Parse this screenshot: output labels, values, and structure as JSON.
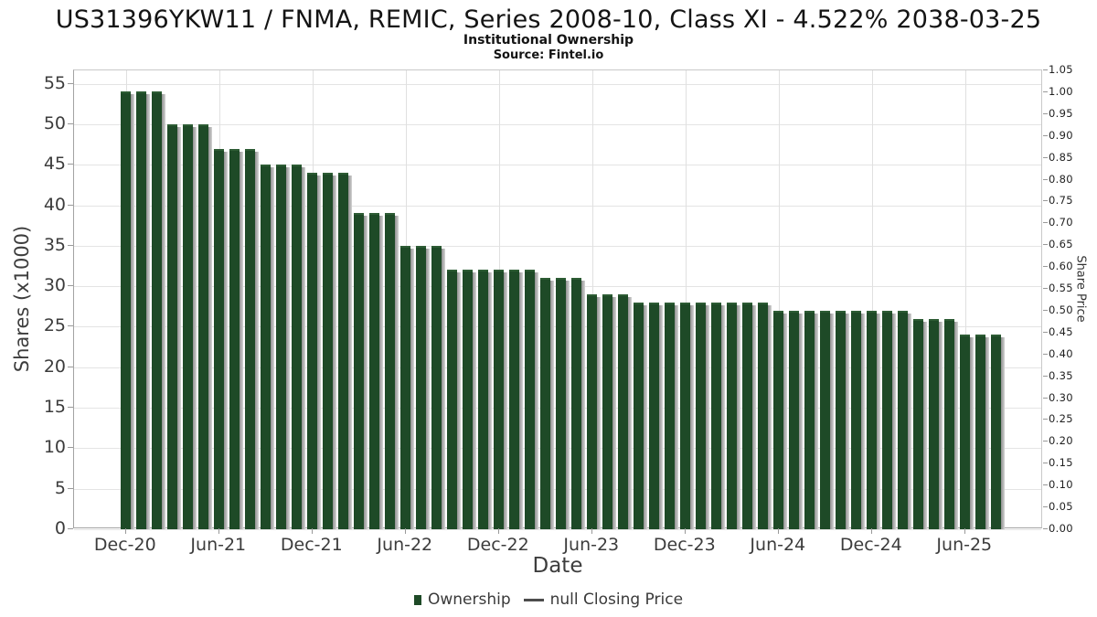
{
  "header": {
    "title": "US31396YKW11 / FNMA, REMIC, Series 2008-10, Class XI - 4.522% 2038-03-25",
    "subtitle": "Institutional Ownership",
    "source": "Source: Fintel.io"
  },
  "chart_data": {
    "type": "bar",
    "title": "US31396YKW11 / FNMA, REMIC, Series 2008-10, Class XI - 4.522% 2038-03-25",
    "subtitle": "Institutional Ownership",
    "source": "Source: Fintel.io",
    "xlabel": "Date",
    "ylabel_left": "Shares (x1000)",
    "ylabel_right": "Share Price",
    "grid": true,
    "legend_position": "bottom",
    "bar_color": "#1e4a27",
    "bar_top_highlight": "#2d5c34",
    "bar_shadow_color": "#8f8f8f",
    "line_legend_color": "#4d4d4d",
    "ylim_left": [
      0,
      56.65
    ],
    "yticks_left": [
      0,
      5,
      10,
      15,
      20,
      25,
      30,
      35,
      40,
      45,
      50,
      55
    ],
    "ylim_right": [
      0,
      1.05
    ],
    "yticks_right": [
      "0.00",
      "0.05",
      "0.10",
      "0.15",
      "0.20",
      "0.25",
      "0.30",
      "0.35",
      "0.40",
      "0.45",
      "0.50",
      "0.55",
      "0.60",
      "0.65",
      "0.70",
      "0.75",
      "0.80",
      "0.85",
      "0.90",
      "0.95",
      "1.00",
      "1.05"
    ],
    "xtick_labels": [
      "Dec-20",
      "Jun-21",
      "Dec-21",
      "Jun-22",
      "Dec-22",
      "Jun-23",
      "Dec-23",
      "Jun-24",
      "Dec-24",
      "Jun-25"
    ],
    "xtick_indices": [
      0,
      6,
      12,
      18,
      24,
      30,
      36,
      42,
      48,
      54
    ],
    "categories": [
      "Dec-20",
      "Jan-21",
      "Feb-21",
      "Mar-21",
      "Apr-21",
      "May-21",
      "Jun-21",
      "Jul-21",
      "Aug-21",
      "Sep-21",
      "Oct-21",
      "Nov-21",
      "Dec-21",
      "Jan-22",
      "Feb-22",
      "Mar-22",
      "Apr-22",
      "May-22",
      "Jun-22",
      "Jul-22",
      "Aug-22",
      "Sep-22",
      "Oct-22",
      "Nov-22",
      "Dec-22",
      "Jan-23",
      "Feb-23",
      "Mar-23",
      "Apr-23",
      "May-23",
      "Jun-23",
      "Jul-23",
      "Aug-23",
      "Sep-23",
      "Oct-23",
      "Nov-23",
      "Dec-23",
      "Jan-24",
      "Feb-24",
      "Mar-24",
      "Apr-24",
      "May-24",
      "Jun-24",
      "Jul-24",
      "Aug-24",
      "Sep-24",
      "Oct-24",
      "Nov-24",
      "Dec-24",
      "Jan-25",
      "Feb-25",
      "Mar-25",
      "Apr-25",
      "May-25",
      "Jun-25",
      "Jul-25",
      "Aug-25"
    ],
    "series": [
      {
        "name": "Ownership",
        "type": "bar",
        "values": [
          54,
          54,
          54,
          50,
          50,
          50,
          47,
          47,
          47,
          45,
          45,
          45,
          44,
          44,
          44,
          39,
          39,
          39,
          35,
          35,
          35,
          32,
          32,
          32,
          32,
          32,
          32,
          31,
          31,
          31,
          29,
          29,
          29,
          28,
          28,
          28,
          28,
          28,
          28,
          28,
          28,
          28,
          27,
          27,
          27,
          27,
          27,
          27,
          27,
          27,
          27,
          26,
          26,
          26,
          24,
          24,
          24
        ]
      },
      {
        "name": "null Closing Price",
        "type": "line",
        "values": []
      }
    ]
  }
}
